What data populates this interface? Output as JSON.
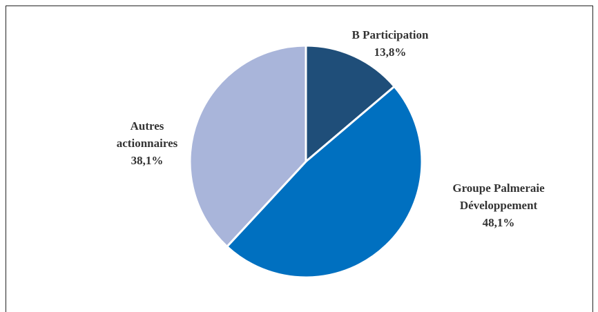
{
  "chart_data": {
    "type": "pie",
    "categories": [
      "B Participation",
      "Groupe Palmeraie Développement",
      "Autres actionnaires"
    ],
    "values": [
      13.8,
      48.1,
      38.1
    ],
    "value_labels": [
      "13,8%",
      "48,1%",
      "38,1%"
    ],
    "colors": [
      "#1f4e79",
      "#0070c0",
      "#a9b5da"
    ]
  }
}
